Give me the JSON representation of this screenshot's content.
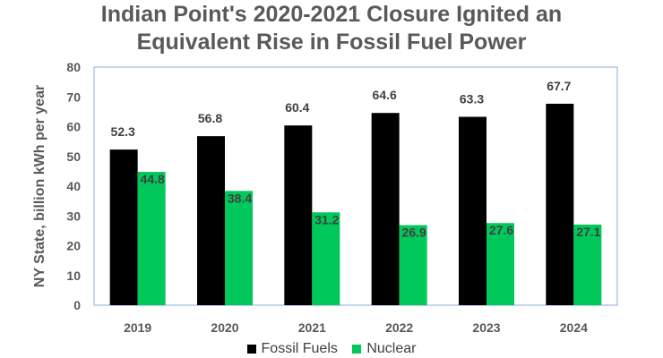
{
  "chart_data": {
    "type": "bar",
    "title_lines": [
      "Indian Point's 2020-2021 Closure Ignited an",
      "Equivalent Rise in Fossil Fuel Power"
    ],
    "ylabel": "NY State, billion kWh per year",
    "categories": [
      "2019",
      "2020",
      "2021",
      "2022",
      "2023",
      "2024"
    ],
    "ylim": [
      0,
      80
    ],
    "yticks": [
      0,
      10,
      20,
      30,
      40,
      50,
      60,
      70,
      80
    ],
    "grid": false,
    "legend_position": "bottom",
    "series": [
      {
        "name": "Fossil Fuels",
        "color": "#000000",
        "values": [
          52.3,
          56.8,
          60.4,
          64.6,
          63.3,
          67.7
        ],
        "labels": [
          "52.3",
          "56.8",
          "60.4",
          "64.6",
          "63.3",
          "67.7"
        ]
      },
      {
        "name": "Nuclear",
        "color": "#00C85A",
        "values": [
          44.8,
          38.4,
          31.2,
          26.9,
          27.6,
          27.1
        ],
        "labels": [
          "44.8",
          "38.4",
          "31.2",
          "26.9",
          "27.6",
          "27.1"
        ]
      }
    ]
  }
}
